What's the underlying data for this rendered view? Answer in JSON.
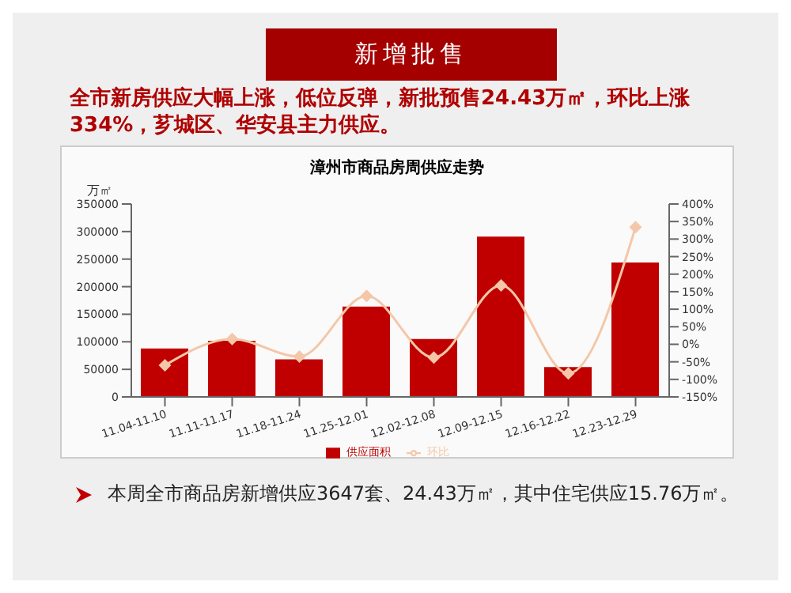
{
  "chart_data": {
    "type": "bar",
    "title": "漳州市商品房周供应走势",
    "subtitle": "新增批售",
    "ylabel": "万㎡",
    "annotations": [
      "全市新房供应大幅上涨，低位反弹，新批预售24.43万㎡，环比上涨334%，芗城区、华安县主力供应。",
      "本周全市商品房新增供应3647套、24.43万㎡，其中住宅供应15.76万㎡。"
    ],
    "categories": [
      "11.04-11.10",
      "11.11-11.17",
      "11.18-11.24",
      "11.25-12.01",
      "12.02-12.08",
      "12.09-12.15",
      "12.16-12.22",
      "12.23-12.29"
    ],
    "series": [
      {
        "name": "供应面积",
        "color": "#c00000",
        "values": [
          88000,
          102000,
          68000,
          164000,
          105000,
          291000,
          54000,
          244000
        ]
      },
      {
        "name": "环比",
        "type": "line",
        "axis": "y2",
        "color": "#f4c7a8",
        "marker": "diamond",
        "values": [
          -60,
          15,
          -35,
          138,
          -38,
          168,
          -83,
          334
        ]
      }
    ],
    "ylim": [
      0,
      350000
    ],
    "yticks": [
      0,
      50000,
      100000,
      150000,
      200000,
      250000,
      300000,
      350000
    ],
    "y2lim": [
      -150,
      400
    ],
    "y2ticks": [
      {
        "value": -150,
        "label": "-150%"
      },
      {
        "value": -100,
        "label": "-100%"
      },
      {
        "value": -50,
        "label": "-50%"
      },
      {
        "value": 0,
        "label": "0%"
      },
      {
        "value": 50,
        "label": "50%"
      },
      {
        "value": 100,
        "label": "100%"
      },
      {
        "value": 150,
        "label": "150%"
      },
      {
        "value": 200,
        "label": "200%"
      },
      {
        "value": 250,
        "label": "250%"
      },
      {
        "value": 300,
        "label": "300%"
      },
      {
        "value": 350,
        "label": "350%"
      },
      {
        "value": 400,
        "label": "400%"
      }
    ],
    "legend": "bottom",
    "grid": false
  }
}
